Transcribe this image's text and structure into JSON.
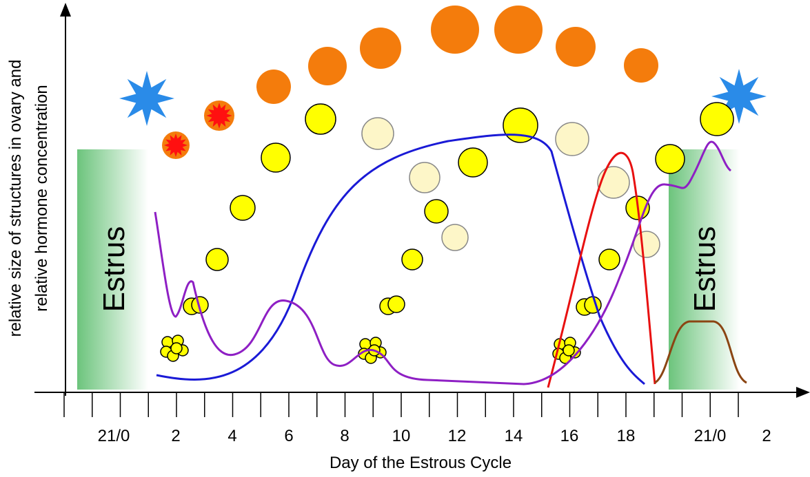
{
  "y_axis_label": [
    "relative size of structures in ovary and",
    "relative hormone concentration"
  ],
  "x_axis_label": "Day of the Estrous Cycle",
  "x_tick_labels": [
    "21/0",
    "2",
    "4",
    "6",
    "8",
    "10",
    "12",
    "14",
    "16",
    "18",
    "21/0",
    "2"
  ],
  "estrus_labels": [
    "Estrus",
    "Estrus"
  ]
}
